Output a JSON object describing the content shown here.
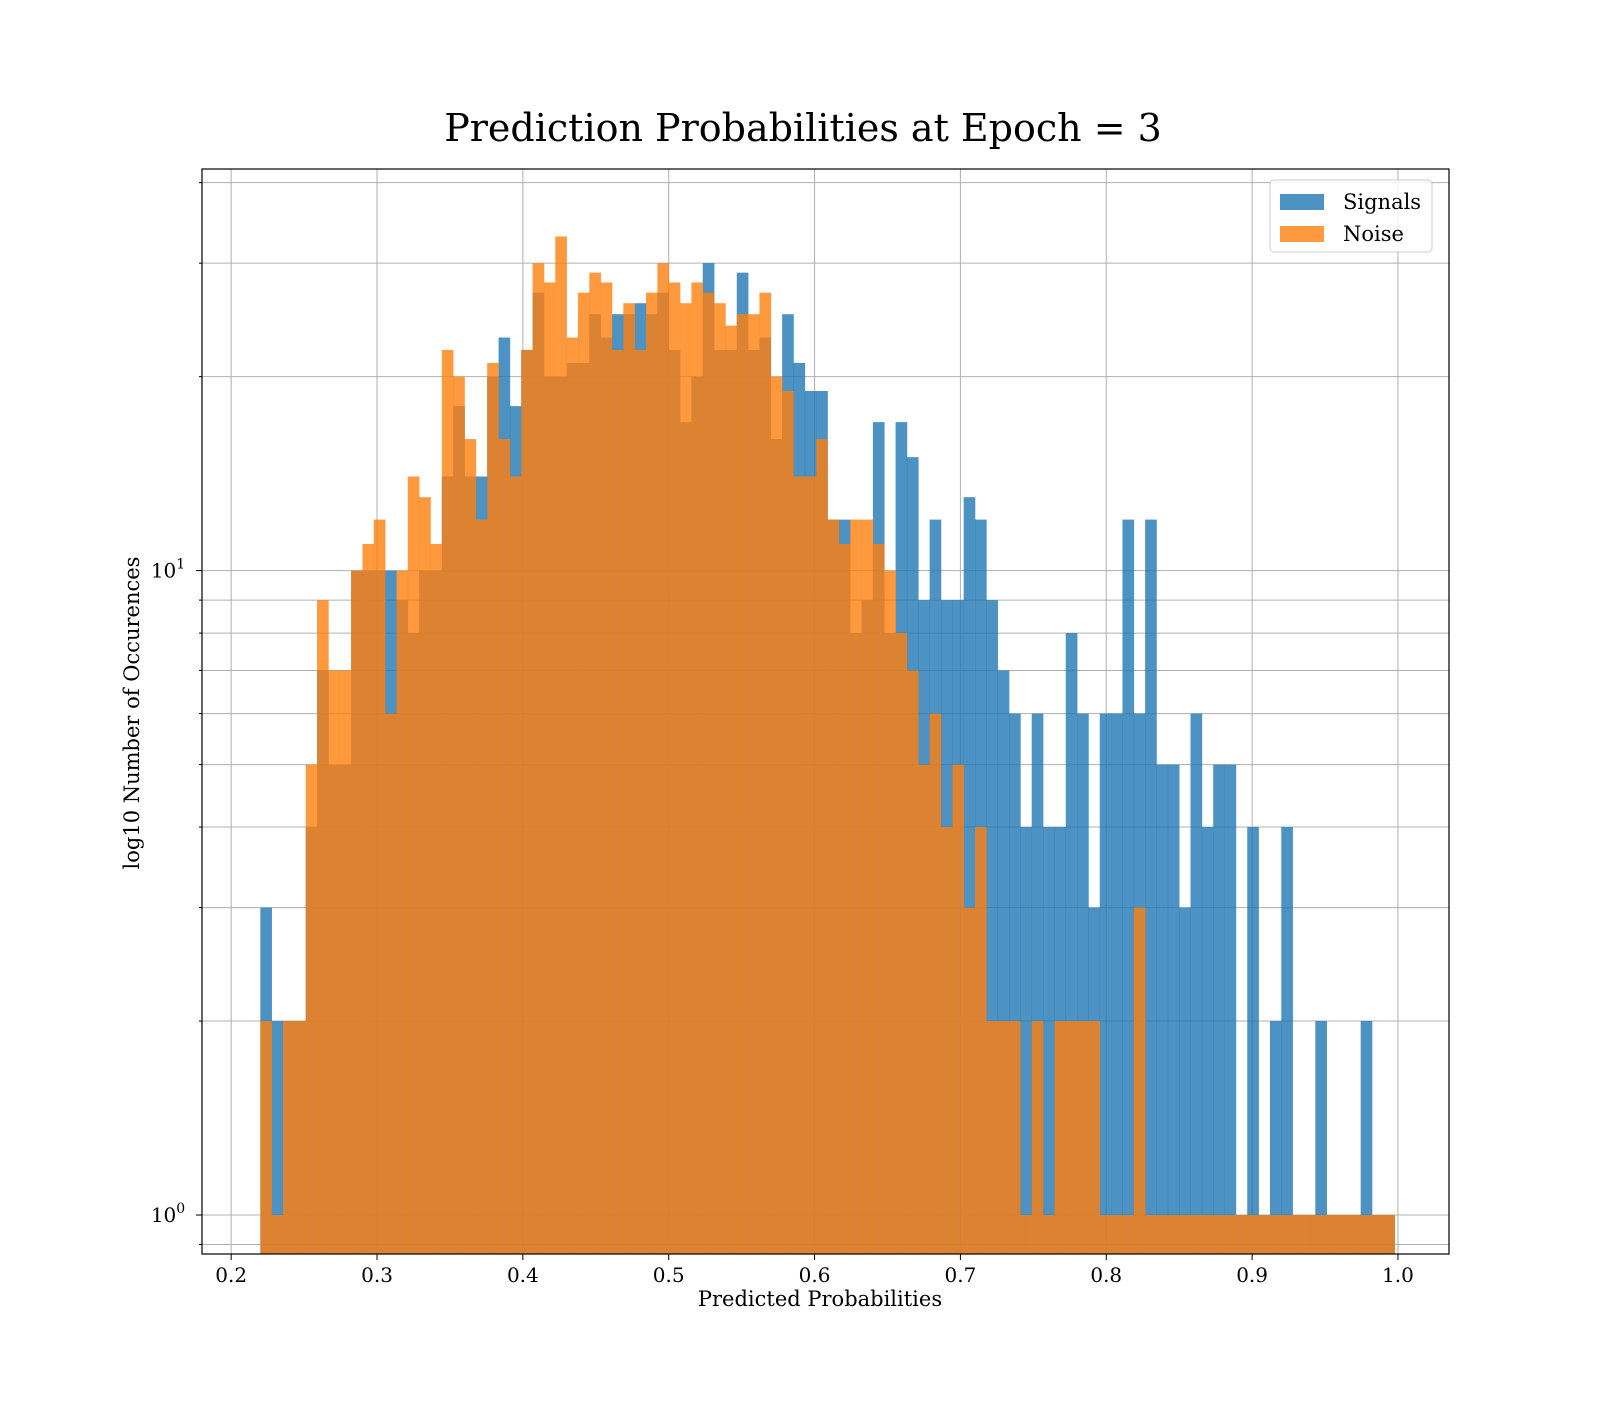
{
  "chart_data": {
    "type": "histogram",
    "title": "Prediction Probabilities at Epoch = 3",
    "xlabel": "Predicted Probabilities",
    "ylabel": "log10 Number of Occurences",
    "x_scale": "linear",
    "y_scale": "log",
    "xlim": [
      0.18,
      1.035
    ],
    "ylim": [
      0.87,
      42
    ],
    "grid": true,
    "legend_position": "top-right",
    "x_ticks": [
      "0.2",
      "0.3",
      "0.4",
      "0.5",
      "0.6",
      "0.7",
      "0.8",
      "0.9",
      "1.0"
    ],
    "x_tick_values": [
      0.2,
      0.3,
      0.4,
      0.5,
      0.6,
      0.7,
      0.8,
      0.9,
      1.0
    ],
    "y_ticks": [
      {
        "value": 1,
        "base": "10",
        "exp": "0"
      },
      {
        "value": 10,
        "base": "10",
        "exp": "1"
      }
    ],
    "bins": {
      "start": 0.22,
      "width": 0.0077778,
      "count": 100
    },
    "series": [
      {
        "name": "Signals",
        "color": "#1f77b4",
        "values": [
          3,
          2,
          2,
          2,
          4,
          7,
          5,
          5,
          10,
          10,
          10,
          10,
          9,
          8,
          10,
          10,
          14,
          18,
          14,
          14,
          20,
          23,
          18,
          22,
          27,
          20,
          20,
          21,
          21,
          25,
          23,
          25,
          25,
          26,
          25,
          27,
          22,
          17,
          20,
          30,
          22,
          22,
          29,
          22,
          23,
          16,
          25,
          21,
          19,
          19,
          12,
          12,
          8,
          9,
          17,
          8,
          17,
          15,
          9,
          12,
          9,
          9,
          13,
          12,
          9,
          7,
          6,
          4,
          6,
          4,
          4,
          8,
          6,
          3,
          6,
          6,
          12,
          6,
          12,
          5,
          5,
          3,
          6,
          4,
          5,
          5,
          1,
          4,
          1,
          2,
          4,
          1,
          1,
          2,
          1,
          1,
          1,
          2,
          1,
          1
        ]
      },
      {
        "name": "Noise",
        "color": "#ff7f0e",
        "values": [
          2,
          1,
          2,
          2,
          5,
          9,
          7,
          7,
          10,
          11,
          12,
          6,
          10,
          14,
          13,
          11,
          22,
          20,
          16,
          12,
          21,
          16,
          14,
          22,
          30,
          28,
          33,
          23,
          27,
          29,
          28,
          22,
          26,
          22,
          27,
          30,
          28,
          26,
          28,
          27,
          26,
          24,
          25,
          25,
          27,
          20,
          19,
          14,
          14,
          16,
          12,
          11,
          12,
          12,
          11,
          10,
          8,
          7,
          5,
          6,
          4,
          5,
          3,
          4,
          2,
          2,
          2,
          1,
          2,
          1,
          2,
          2,
          2,
          2,
          1,
          1,
          1,
          3,
          1,
          1,
          1,
          1,
          1,
          1,
          1,
          1,
          1,
          1,
          1,
          1,
          1,
          1,
          1,
          1,
          1,
          1,
          1,
          1,
          1,
          1
        ]
      }
    ]
  }
}
